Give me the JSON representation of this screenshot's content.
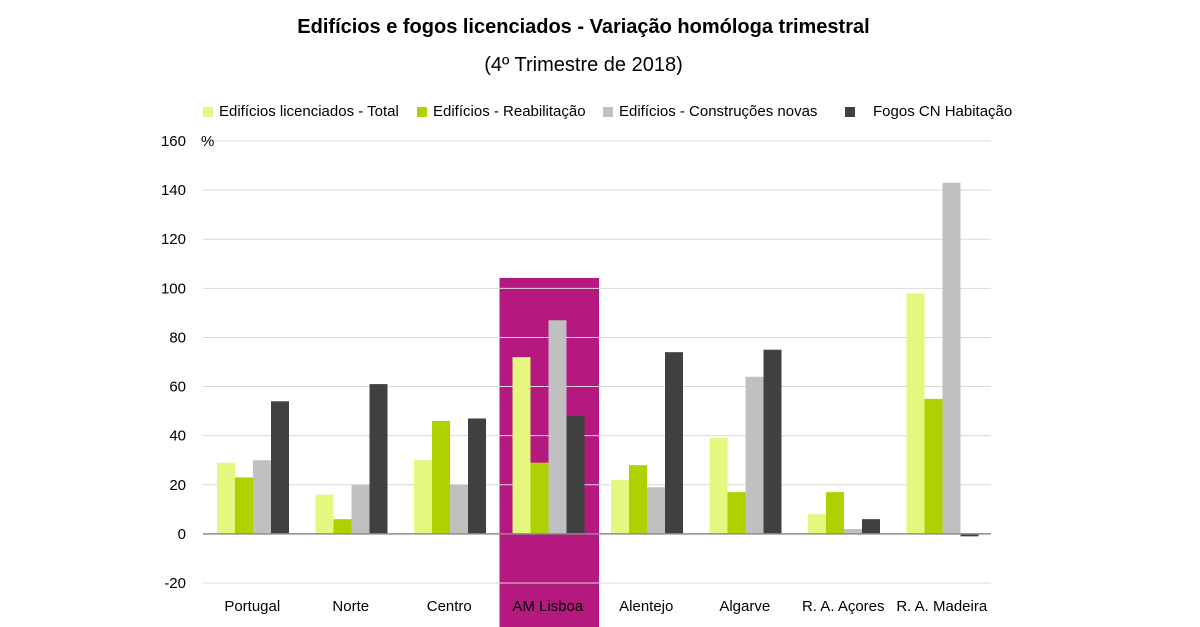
{
  "chart_data": {
    "type": "bar",
    "title": "Edifícios e fogos licenciados - Variação homóloga trimestral",
    "subtitle": "(4º Trimestre de 2018)",
    "ylabel": "%",
    "ylim": [
      -20,
      160
    ],
    "yticks": [
      -20,
      0,
      20,
      40,
      60,
      80,
      100,
      120,
      140,
      160
    ],
    "grid": true,
    "legend_position": "top",
    "categories": [
      "Portugal",
      "Norte",
      "Centro",
      "AM Lisboa",
      "Alentejo",
      "Algarve",
      "R. A. Açores",
      "R. A. Madeira"
    ],
    "highlight_category": "AM Lisboa",
    "highlight_color": "#B5197F",
    "series": [
      {
        "name": "Edifícios licenciados - Total",
        "color": "#E5F77E",
        "values": [
          29,
          16,
          30,
          72,
          22,
          39,
          8,
          98
        ]
      },
      {
        "name": "Edifícios - Reabilitação",
        "color": "#B0D000",
        "values": [
          23,
          6,
          46,
          29,
          28,
          17,
          17,
          55
        ]
      },
      {
        "name": "Edifícios - Construções novas",
        "color": "#C0C0C0",
        "values": [
          30,
          20,
          20,
          87,
          19,
          64,
          2,
          143
        ]
      },
      {
        "name": "Fogos CN Habitação",
        "color": "#404040",
        "values": [
          54,
          61,
          47,
          48,
          74,
          75,
          6,
          -1
        ]
      }
    ]
  }
}
